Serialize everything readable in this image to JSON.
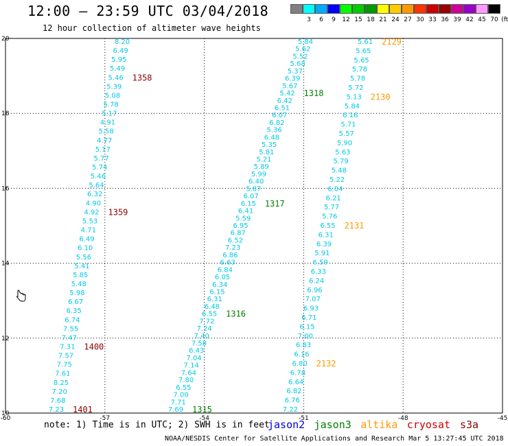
{
  "header": {
    "title": "12:00 — 23:59 UTC 03/04/2018",
    "subtitle": "12 hour collection of altimeter wave heights"
  },
  "legend": {
    "unit": "(ft)",
    "bins": [
      {
        "label": "",
        "color": "#808080"
      },
      {
        "label": "3",
        "color": "#00ffff"
      },
      {
        "label": "6",
        "color": "#00aaff"
      },
      {
        "label": "9",
        "color": "#0000ff"
      },
      {
        "label": "12",
        "color": "#00ff00"
      },
      {
        "label": "15",
        "color": "#00cc00"
      },
      {
        "label": "18",
        "color": "#009900"
      },
      {
        "label": "21",
        "color": "#ffff00"
      },
      {
        "label": "24",
        "color": "#ffcc00"
      },
      {
        "label": "27",
        "color": "#ff9900"
      },
      {
        "label": "30",
        "color": "#ff3300"
      },
      {
        "label": "33",
        "color": "#cc0000"
      },
      {
        "label": "36",
        "color": "#990000"
      },
      {
        "label": "39",
        "color": "#cc0099"
      },
      {
        "label": "42",
        "color": "#9900cc"
      },
      {
        "label": "45",
        "color": "#ff99ff"
      },
      {
        "label": "70",
        "color": "#000000"
      }
    ]
  },
  "axes": {
    "lon_labels": [
      "-60",
      "-57",
      "-54",
      "-51",
      "-48",
      "-45"
    ],
    "lat_labels": [
      "20",
      "18",
      "16",
      "14",
      "12",
      "10"
    ]
  },
  "tracks": [
    {
      "id": "track-1358-1401",
      "color": "#00c8e6",
      "values": [
        "8.20",
        "6.49",
        "5.95",
        "5.49",
        "5.46",
        "5.39",
        "5.08",
        "5.78",
        "5.17",
        "4.91",
        "5.58",
        "4.77",
        "5.17",
        "5.77",
        "5.74",
        "5.46",
        "5.64",
        "6.32",
        "4.90",
        "4.92",
        "5.53",
        "4.71",
        "6.49",
        "6.10",
        "5.56",
        "5.41",
        "5.85",
        "5.48",
        "5.98",
        "6.67",
        "6.35",
        "6.74",
        "7.55",
        "7.47",
        "7.31",
        "7.57",
        "7.75",
        "7.61",
        "8.25",
        "7.20",
        "7.68",
        "7.23"
      ],
      "x_start": 178,
      "x_end": 82,
      "passes": [
        {
          "label": "1358",
          "value_index": 4,
          "color": "#8b0000"
        },
        {
          "label": "1359",
          "value_index": 19,
          "color": "#8b0000"
        },
        {
          "label": "1400",
          "value_index": 34,
          "color": "#8b0000"
        },
        {
          "label": "1401",
          "value_index": 41,
          "color": "#8b0000"
        }
      ]
    },
    {
      "id": "track-1315-1318",
      "color": "#00c8e6",
      "values": [
        "5.84",
        "5.62",
        "5.52",
        "5.68",
        "5.37",
        "6.39",
        "5.67",
        "5.42",
        "6.42",
        "6.51",
        "6.07",
        "6.82",
        "5.36",
        "6.48",
        "5.35",
        "5.81",
        "5.21",
        "5.89",
        "5.99",
        "6.40",
        "5.87",
        "6.07",
        "6.15",
        "6.41",
        "5.59",
        "6.95",
        "6.87",
        "6.52",
        "7.23",
        "6.86",
        "6.63",
        "6.84",
        "6.05",
        "6.34",
        "6.15",
        "6.31",
        "6.48",
        "6.55",
        "7.72",
        "7.24",
        "7.40",
        "7.58",
        "6.43",
        "7.04",
        "7.14",
        "7.64",
        "7.80",
        "6.55",
        "7.00",
        "7.71",
        "7.69"
      ],
      "x_start": 445,
      "x_end": 256,
      "passes": [
        {
          "label": "1318",
          "value_index": 7,
          "color": "#008000"
        },
        {
          "label": "1317",
          "value_index": 22,
          "color": "#008000"
        },
        {
          "label": "1316",
          "value_index": 37,
          "color": "#008000"
        },
        {
          "label": "1315",
          "value_index": 50,
          "color": "#008000"
        }
      ]
    },
    {
      "id": "track-2129-2132",
      "color": "#00c8e6",
      "values": [
        "5.61",
        "5.65",
        "5.65",
        "5.78",
        "5.78",
        "5.72",
        "5.13",
        "5.84",
        "6.16",
        "5.71",
        "5.57",
        "5.90",
        "5.63",
        "5.79",
        "5.48",
        "5.22",
        "6.04",
        "6.21",
        "5.77",
        "5.76",
        "6.55",
        "6.31",
        "6.39",
        "5.91",
        "6.59",
        "6.33",
        "6.24",
        "6.96",
        "7.07",
        "6.93",
        "6.71",
        "6.15",
        "7.00",
        "6.83",
        "6.16",
        "6.80",
        "6.78",
        "6.64",
        "6.82",
        "6.76",
        "7.22"
      ],
      "x_start": 532,
      "x_end": 423,
      "passes": [
        {
          "label": "2129",
          "value_index": 0,
          "color": "#ff9900"
        },
        {
          "label": "2130",
          "value_index": 6,
          "color": "#ff9900"
        },
        {
          "label": "2131",
          "value_index": 20,
          "color": "#ff9900"
        },
        {
          "label": "2132",
          "value_index": 35,
          "color": "#ff9900"
        }
      ]
    }
  ],
  "footer": {
    "note": "note: 1) Time is in UTC; 2) SWH is in feet",
    "missions": [
      {
        "label": "jason2",
        "color": "#0000cc"
      },
      {
        "label": "jason3",
        "color": "#008000"
      },
      {
        "label": "altika",
        "color": "#ff9900"
      },
      {
        "label": "cryosat",
        "color": "#cc0000"
      },
      {
        "label": "s3a",
        "color": "#8b0000"
      }
    ],
    "credit": "NOAA/NESDIS Center for Satellite Applications and Research     Mar  5 13:27:45 UTC 2018"
  }
}
